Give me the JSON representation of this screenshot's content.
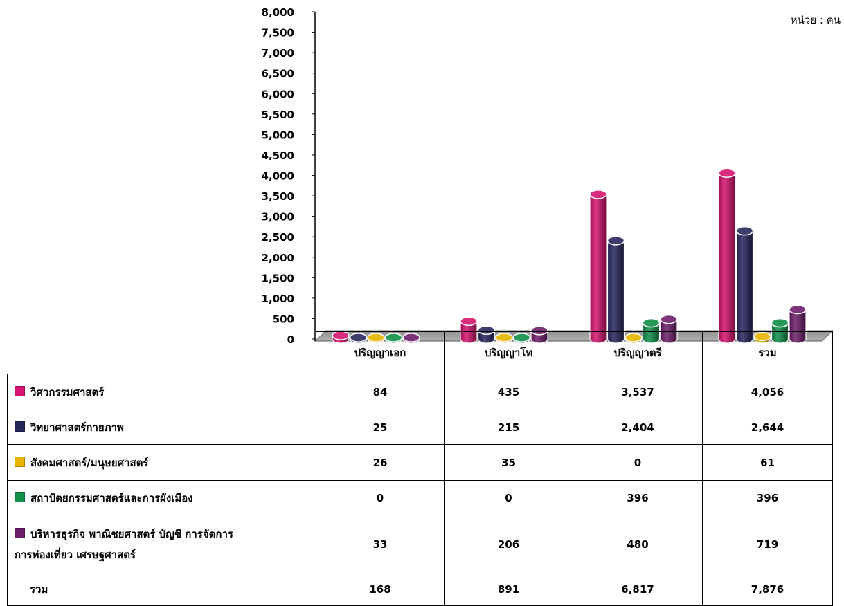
{
  "unit_label": "หน่วย : คน",
  "chart_data": {
    "type": "bar",
    "categories": [
      "ปริญญาเอก",
      "ปริญญาโท",
      "ปริญญาตรี",
      "รวม"
    ],
    "series": [
      {
        "name": "วิศวกรรมศาสตร์",
        "color": "#d6136f",
        "values": [
          84,
          435,
          3537,
          4056
        ]
      },
      {
        "name": "วิทยาศาสตร์กายภาพ",
        "color": "#27275e",
        "values": [
          25,
          215,
          2404,
          2644
        ]
      },
      {
        "name": "สังคมศาสตร์/มนุษยศาสตร์",
        "color": "#e8b400",
        "values": [
          26,
          35,
          0,
          61
        ]
      },
      {
        "name": "สถาปัตยกรรมศาสตร์และการผังเมือง",
        "color": "#0f8f48",
        "values": [
          0,
          0,
          396,
          396
        ]
      },
      {
        "name": "บริหารธุรกิจ พาณิชยศาสตร์ บัญชี การจัดการ การท่องเที่ยว เศรษฐศาสตร์",
        "color": "#6d1d6b",
        "values": [
          33,
          206,
          480,
          719
        ]
      }
    ],
    "yticks": [
      "0",
      "500",
      "1,000",
      "1,500",
      "2,000",
      "2,500",
      "3,000",
      "3,500",
      "4,000",
      "4,500",
      "5,000",
      "5,500",
      "6,000",
      "6,500",
      "7,000",
      "7,500",
      "8,000"
    ],
    "ylim": [
      0,
      8000
    ],
    "legend_placement": "table-left",
    "grid": false
  },
  "table": {
    "rows": [
      {
        "label": "วิศวกรรมศาสตร์",
        "color": "#d6136f",
        "cells": [
          "84",
          "435",
          "3,537",
          "4,056"
        ]
      },
      {
        "label": "วิทยาศาสตร์กายภาพ",
        "color": "#27275e",
        "cells": [
          "25",
          "215",
          "2,404",
          "2,644"
        ]
      },
      {
        "label": "สังคมศาสตร์/มนุษยศาสตร์",
        "color": "#e8b400",
        "cells": [
          "26",
          "35",
          "0",
          "61"
        ]
      },
      {
        "label": "สถาปัตยกรรมศาสตร์และการผังเมือง",
        "color": "#0f8f48",
        "cells": [
          "0",
          "0",
          "396",
          "396"
        ]
      },
      {
        "label_line1": "บริหารธุรกิจ พาณิชยศาสตร์ บัญชี การจัดการ",
        "label_line2": "การท่องเที่ยว เศรษฐศาสตร์",
        "color": "#6d1d6b",
        "cells": [
          "33",
          "206",
          "480",
          "719"
        ]
      }
    ],
    "total": {
      "label": "รวม",
      "cells": [
        "168",
        "891",
        "6,817",
        "7,876"
      ]
    }
  }
}
